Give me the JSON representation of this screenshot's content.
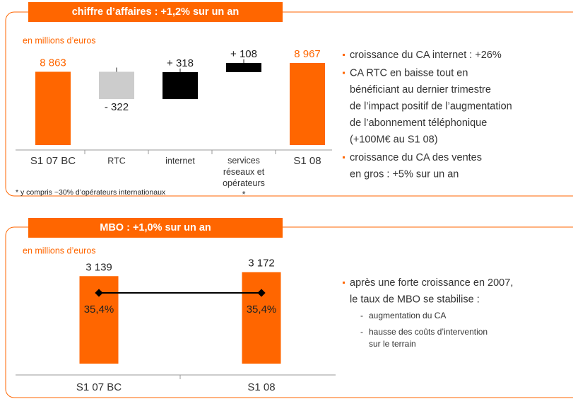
{
  "chart_data": [
    {
      "type": "waterfall",
      "title": "chiffre d’affaires : +1,2% sur un an",
      "subtitle": "en millions d’euros",
      "categories": [
        "S1 07 BC",
        "RTC",
        "internet",
        "services réseaux et opérateurs *",
        "S1 08"
      ],
      "values": [
        8863,
        -322,
        318,
        108,
        8967
      ],
      "value_labels": [
        "8 863",
        "- 322",
        "+ 318",
        "+ 108",
        "8 967"
      ],
      "colors": [
        "#ff6600",
        "#cccccc",
        "#000000",
        "#000000",
        "#ff6600"
      ],
      "ylim": [
        8000,
        9000
      ],
      "footnote": "* y compris ~30% d’opérateurs internationaux",
      "bullets": [
        [
          "croissance du CA internet : +26%"
        ],
        [
          "CA RTC en baisse tout en",
          "bénéficiant au dernier trimestre",
          "de l’impact positif de l’augmentation",
          "de l’abonnement téléphonique",
          "(+100M€ au S1 08)"
        ],
        [
          "croissance du CA des ventes",
          "en gros : +5% sur un an"
        ]
      ]
    },
    {
      "type": "bar",
      "title": "MBO : +1,0% sur un an",
      "subtitle": "en millions d’euros",
      "categories": [
        "S1 07 BC",
        "S1 08"
      ],
      "values": [
        3139,
        3172
      ],
      "value_labels": [
        "3 139",
        "3 172"
      ],
      "color": "#ff6600",
      "ylim": [
        2400,
        3320
      ],
      "y2lim": [
        0,
        54.5
      ],
      "series": [
        {
          "values": [
            35.4,
            35.4
          ],
          "value_labels": [
            "35,4%",
            "35,4%"
          ],
          "axis": "y2",
          "color": "#000000"
        }
      ],
      "bullets": [
        [
          "après une forte croissance en 2007,",
          "le taux de MBO se stabilise :"
        ]
      ],
      "sub_bullets": [
        [
          "augmentation du CA"
        ],
        [
          "hausse des coûts d’intervention",
          "sur le terrain"
        ]
      ]
    }
  ]
}
